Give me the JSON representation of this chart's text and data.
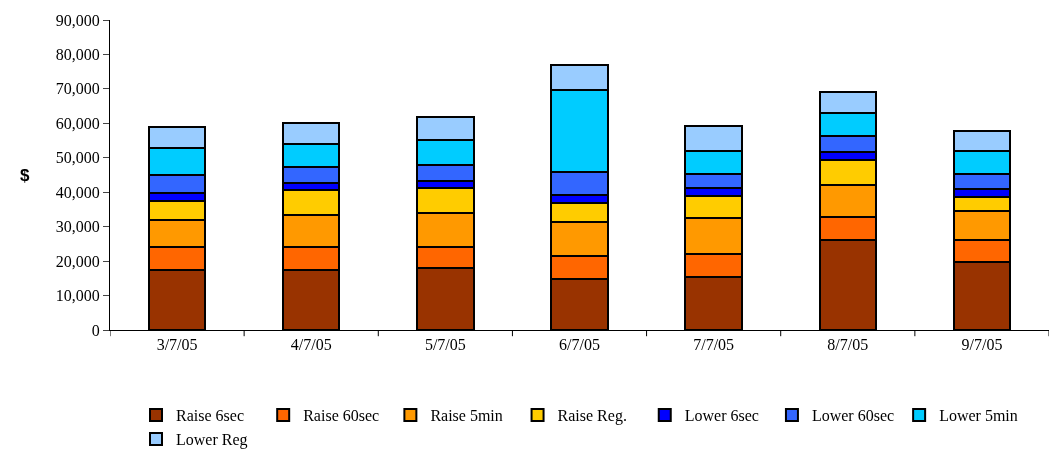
{
  "chart_data": {
    "type": "bar",
    "stacked": true,
    "ylabel": "$",
    "categories": [
      "3/7/05",
      "4/7/05",
      "5/7/05",
      "6/7/05",
      "7/7/05",
      "8/7/05",
      "9/7/05"
    ],
    "series": [
      {
        "name": "Raise 6sec",
        "color": "#993300",
        "values": [
          17400,
          17400,
          17900,
          14800,
          15400,
          26100,
          19600
        ]
      },
      {
        "name": "Raise 60sec",
        "color": "#ff6600",
        "values": [
          6700,
          6700,
          6200,
          6800,
          6700,
          6800,
          6600
        ]
      },
      {
        "name": "Raise 5min",
        "color": "#ff9900",
        "values": [
          7800,
          9300,
          9800,
          9800,
          10400,
          9300,
          8300
        ]
      },
      {
        "name": "Raise Reg.",
        "color": "#ffcc00",
        "values": [
          5600,
          7200,
          7200,
          5500,
          6400,
          7300,
          4100
        ]
      },
      {
        "name": "Lower 6sec",
        "color": "#0000ff",
        "values": [
          2200,
          2100,
          2200,
          2300,
          2200,
          2100,
          2200
        ]
      },
      {
        "name": "Lower 60sec",
        "color": "#3366ff",
        "values": [
          5200,
          4500,
          4500,
          6700,
          4100,
          4600,
          4600
        ]
      },
      {
        "name": "Lower 5min",
        "color": "#00ccff",
        "values": [
          7800,
          6900,
          7400,
          23700,
          6800,
          6700,
          6700
        ]
      },
      {
        "name": "Lower Reg",
        "color": "#99ccff",
        "values": [
          6300,
          6100,
          6700,
          7300,
          7300,
          6200,
          5600
        ]
      }
    ],
    "ylim": [
      0,
      90000
    ],
    "yticks": [
      {
        "value": 0,
        "label": "0"
      },
      {
        "value": 10000,
        "label": "10,000"
      },
      {
        "value": 20000,
        "label": "20,000"
      },
      {
        "value": 30000,
        "label": "30,000"
      },
      {
        "value": 40000,
        "label": "40,000"
      },
      {
        "value": 50000,
        "label": "50,000"
      },
      {
        "value": 60000,
        "label": "60,000"
      },
      {
        "value": 70000,
        "label": "70,000"
      },
      {
        "value": 80000,
        "label": "80,000"
      },
      {
        "value": 90000,
        "label": "90,000"
      }
    ],
    "legend": "bottom"
  }
}
